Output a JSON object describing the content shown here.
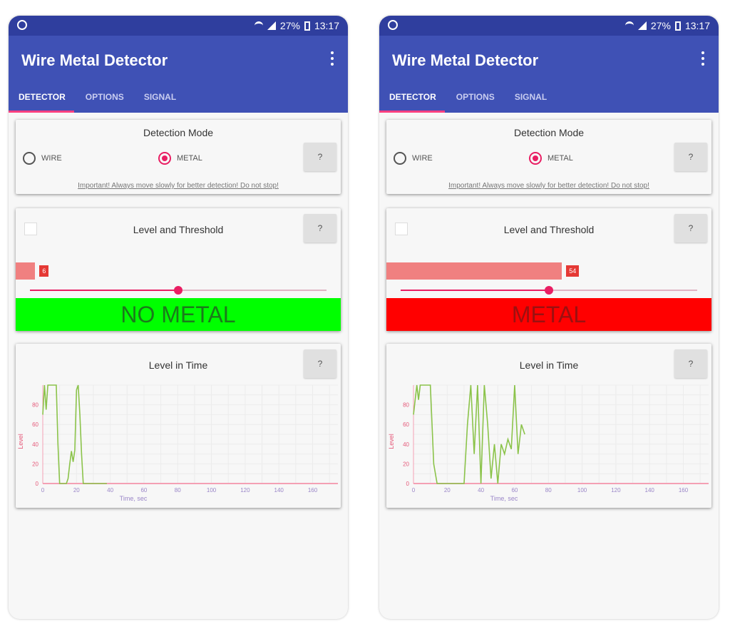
{
  "phones": [
    {
      "status": {
        "battery": "27%",
        "time": "13:17"
      },
      "app_title": "Wire Metal Detector",
      "tabs": [
        "DETECTOR",
        "OPTIONS",
        "SIGNAL"
      ],
      "mode_card": {
        "title": "Detection Mode",
        "wire": "WIRE",
        "metal": "METAL",
        "help": "?",
        "hint": "Important! Always move slowly for better detection! Do not stop!"
      },
      "level_card": {
        "title": "Level and Threshold",
        "help": "?",
        "level_value": "6",
        "level_fraction": 0.06,
        "threshold_fraction": 0.5,
        "status": "NO METAL",
        "status_color": "#00ff00",
        "status_text_color": "#1b7a1b"
      },
      "time_card": {
        "title": "Level in Time",
        "help": "?"
      },
      "chart_data": {
        "type": "line",
        "ylabel": "Level",
        "xlabel": "Time, sec",
        "xlim": [
          0,
          175
        ],
        "ylim": [
          0,
          100
        ],
        "x_ticks": [
          "0",
          "20",
          "40",
          "60",
          "80",
          "100",
          "120",
          "140",
          "160"
        ],
        "y_ticks": [
          "0",
          "20",
          "40",
          "60",
          "80"
        ],
        "series": [
          {
            "x": [
              0,
              1,
              2,
              3,
              4,
              6,
              8,
              9,
              10,
              11,
              12,
              13,
              14,
              15,
              16,
              17,
              18,
              19,
              20,
              21,
              22,
              23,
              24,
              25,
              26,
              27,
              28,
              29,
              30,
              32,
              34,
              36,
              38
            ],
            "y": [
              70,
              100,
              75,
              100,
              100,
              100,
              100,
              40,
              0,
              0,
              0,
              0,
              0,
              5,
              20,
              33,
              22,
              34,
              95,
              100,
              70,
              30,
              0,
              0,
              0,
              0,
              0,
              0,
              0,
              0,
              0,
              0,
              0
            ]
          }
        ],
        "threshold": 0
      }
    },
    {
      "status": {
        "battery": "27%",
        "time": "13:17"
      },
      "app_title": "Wire Metal Detector",
      "tabs": [
        "DETECTOR",
        "OPTIONS",
        "SIGNAL"
      ],
      "mode_card": {
        "title": "Detection Mode",
        "wire": "WIRE",
        "metal": "METAL",
        "help": "?",
        "hint": "Important! Always move slowly for better detection! Do not stop!"
      },
      "level_card": {
        "title": "Level and Threshold",
        "help": "?",
        "level_value": "54",
        "level_fraction": 0.54,
        "threshold_fraction": 0.5,
        "status": "METAL",
        "status_color": "#ff0000",
        "status_text_color": "#9c1010"
      },
      "time_card": {
        "title": "Level in Time",
        "help": "?"
      },
      "chart_data": {
        "type": "line",
        "ylabel": "Level",
        "xlabel": "Time, sec",
        "xlim": [
          0,
          175
        ],
        "ylim": [
          0,
          100
        ],
        "x_ticks": [
          "0",
          "20",
          "40",
          "60",
          "80",
          "100",
          "120",
          "140",
          "160"
        ],
        "y_ticks": [
          "0",
          "20",
          "40",
          "60",
          "80"
        ],
        "series": [
          {
            "x": [
              0,
              2,
              3,
              4,
              6,
              8,
              10,
              12,
              14,
              16,
              18,
              20,
              22,
              24,
              26,
              28,
              30,
              32,
              34,
              36,
              38,
              40,
              42,
              44,
              46,
              48,
              50,
              52,
              54,
              56,
              58,
              60,
              62,
              64,
              66
            ],
            "y": [
              70,
              100,
              85,
              100,
              100,
              100,
              100,
              20,
              0,
              0,
              0,
              0,
              0,
              0,
              0,
              0,
              0,
              60,
              100,
              30,
              100,
              0,
              100,
              60,
              5,
              40,
              0,
              40,
              30,
              45,
              35,
              100,
              30,
              60,
              50
            ]
          }
        ],
        "threshold": 0
      }
    }
  ]
}
